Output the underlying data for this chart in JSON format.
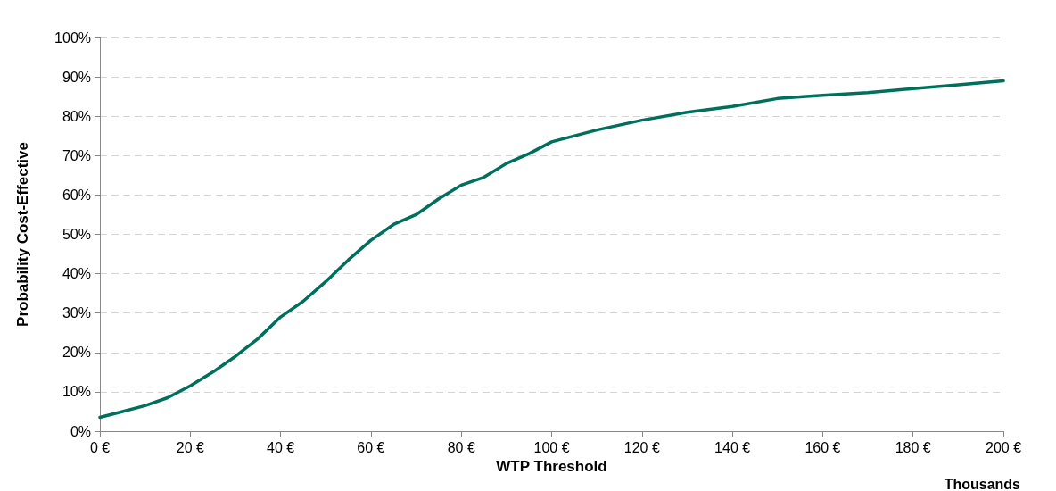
{
  "chart_data": {
    "type": "line",
    "xlabel": "WTP Threshold",
    "ylabel": "Probability Cost-Effective",
    "annotations": [
      "Thousands"
    ],
    "x": [
      0,
      5,
      10,
      15,
      20,
      25,
      30,
      35,
      40,
      45,
      50,
      55,
      60,
      65,
      70,
      75,
      80,
      85,
      90,
      95,
      100,
      110,
      120,
      130,
      140,
      150,
      160,
      170,
      180,
      190,
      200
    ],
    "series": [
      {
        "color": "#00705c",
        "values": [
          3.5,
          5,
          6.5,
          8.5,
          11.5,
          15,
          19,
          23.5,
          29,
          33,
          38,
          43.5,
          48.5,
          52.5,
          55,
          59,
          62.5,
          64.5,
          68,
          70.5,
          73.5,
          76.5,
          79,
          81,
          82.5,
          84.5,
          85.3,
          86,
          87,
          88,
          89
        ]
      }
    ],
    "xlim": [
      0,
      200
    ],
    "xticks": [
      {
        "value": 0,
        "label": "0 €"
      },
      {
        "value": 20,
        "label": "20 €"
      },
      {
        "value": 40,
        "label": "40 €"
      },
      {
        "value": 60,
        "label": "60 €"
      },
      {
        "value": 80,
        "label": "80 €"
      },
      {
        "value": 100,
        "label": "100 €"
      },
      {
        "value": 120,
        "label": "120 €"
      },
      {
        "value": 140,
        "label": "140 €"
      },
      {
        "value": 160,
        "label": "160 €"
      },
      {
        "value": 180,
        "label": "180 €"
      },
      {
        "value": 200,
        "label": "200 €"
      }
    ],
    "ylim": [
      0,
      100
    ],
    "yticks": [
      {
        "value": 0,
        "label": "0%"
      },
      {
        "value": 10,
        "label": "10%"
      },
      {
        "value": 20,
        "label": "20%"
      },
      {
        "value": 30,
        "label": "30%"
      },
      {
        "value": 40,
        "label": "40%"
      },
      {
        "value": 50,
        "label": "50%"
      },
      {
        "value": 60,
        "label": "60%"
      },
      {
        "value": 70,
        "label": "70%"
      },
      {
        "value": 80,
        "label": "80%"
      },
      {
        "value": 90,
        "label": "90%"
      },
      {
        "value": 100,
        "label": "100%"
      }
    ],
    "grid": "y",
    "marker": "none",
    "line_style": "solid"
  }
}
